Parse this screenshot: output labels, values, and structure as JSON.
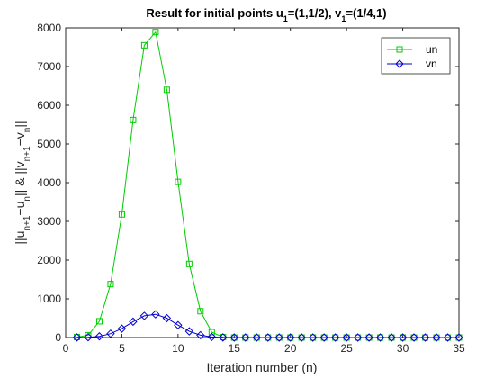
{
  "chart_data": {
    "type": "line",
    "title": {
      "prefix": "Result for initial points u",
      "sub1": "1",
      "mid": "=(1,1/2), v",
      "sub2": "1",
      "suffix": "=(1/4,1)"
    },
    "xlabel": "Iteration number (n)",
    "ylabel": {
      "p1": "||u",
      "s1": "n+1",
      "p2": "−u",
      "s2": "n",
      "p3": "|| & ||v",
      "s3": "n+1",
      "p4": "−v",
      "s4": "n",
      "p5": "||"
    },
    "xlim": [
      0,
      35
    ],
    "ylim": [
      0,
      8000
    ],
    "xticks": [
      0,
      5,
      10,
      15,
      20,
      25,
      30,
      35
    ],
    "yticks": [
      0,
      1000,
      2000,
      3000,
      4000,
      5000,
      6000,
      7000,
      8000
    ],
    "x": [
      1,
      2,
      3,
      4,
      5,
      6,
      7,
      8,
      9,
      10,
      11,
      12,
      13,
      14,
      15,
      16,
      17,
      18,
      19,
      20,
      21,
      22,
      23,
      24,
      25,
      26,
      27,
      28,
      29,
      30,
      31,
      32,
      33,
      34,
      35
    ],
    "series": [
      {
        "name": "un",
        "color": "#00cc00",
        "marker": "square",
        "values": [
          10,
          60,
          420,
          1380,
          3180,
          5620,
          7550,
          7890,
          6400,
          4020,
          1900,
          680,
          140,
          10,
          0,
          0,
          0,
          0,
          0,
          0,
          0,
          0,
          0,
          0,
          0,
          0,
          0,
          0,
          0,
          0,
          0,
          0,
          0,
          0,
          0
        ]
      },
      {
        "name": "vn",
        "color": "#0000cc",
        "marker": "diamond",
        "values": [
          2,
          8,
          30,
          100,
          230,
          410,
          560,
          600,
          500,
          320,
          160,
          60,
          15,
          3,
          0,
          0,
          0,
          0,
          0,
          0,
          0,
          0,
          0,
          0,
          0,
          0,
          0,
          0,
          0,
          0,
          0,
          0,
          0,
          0,
          0
        ]
      }
    ],
    "grid": false,
    "legend_position": "top-right"
  }
}
